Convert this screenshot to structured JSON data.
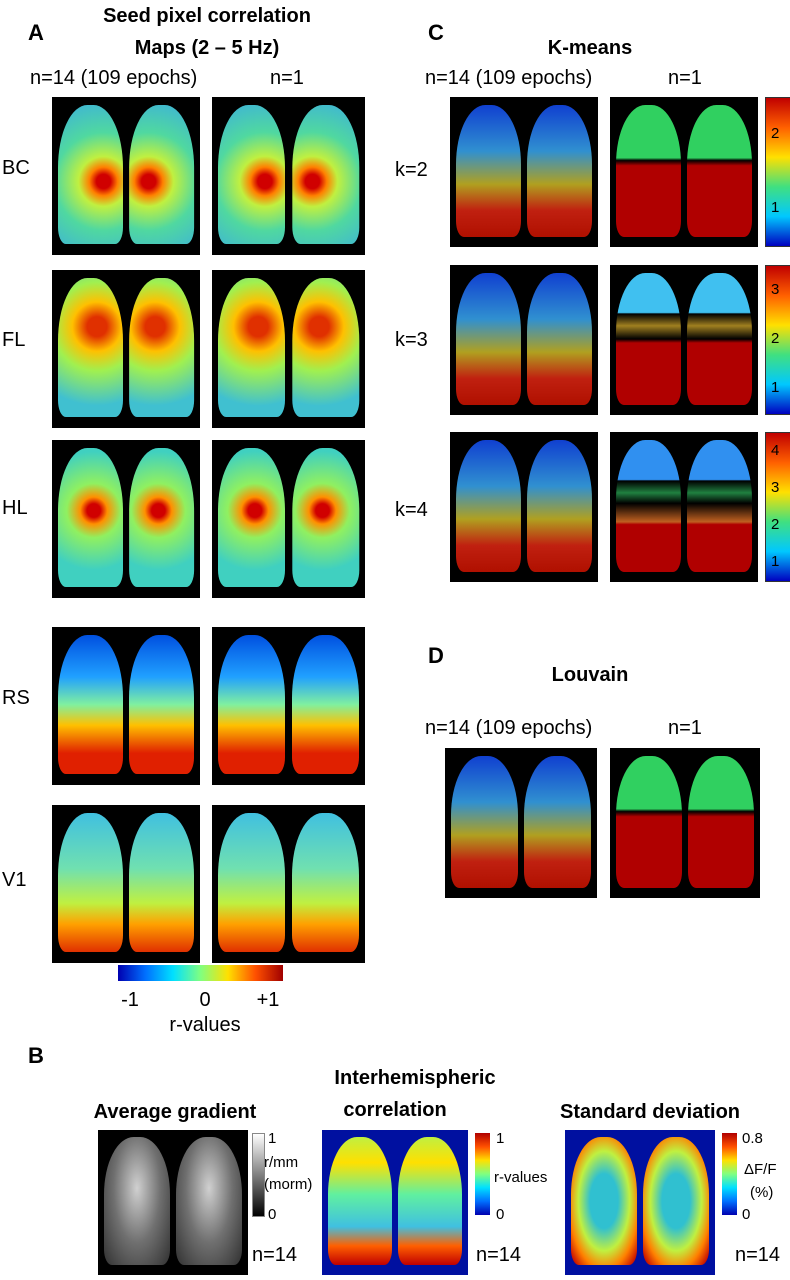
{
  "panel_a": {
    "label": "A",
    "title_lines": [
      "Seed pixel correlation",
      "Maps (2 – 5 Hz)"
    ],
    "column_headers": [
      "n=14 (109 epochs)",
      "n=1"
    ],
    "row_labels": [
      "BC",
      "FL",
      "HL",
      "RS",
      "V1"
    ],
    "colorbar": {
      "ticks": [
        "-1",
        "0",
        "+1"
      ],
      "label": "r-values"
    }
  },
  "panel_c": {
    "label": "C",
    "title": "K-means",
    "column_headers": [
      "n=14 (109 epochs)",
      "n=1"
    ],
    "row_labels": [
      "k=2",
      "k=3",
      "k=4"
    ],
    "colorbar_ticks": [
      [
        "2",
        "1"
      ],
      [
        "3",
        "2",
        "1"
      ],
      [
        "4",
        "3",
        "2",
        "1"
      ]
    ]
  },
  "panel_d": {
    "label": "D",
    "title": "Louvain",
    "column_headers": [
      "n=14 (109 epochs)",
      "n=1"
    ]
  },
  "panel_b": {
    "label": "B",
    "panels": [
      {
        "title_lines": [
          "Average gradient"
        ],
        "colorbar_labels": [
          "1",
          "r/mm",
          "(morm)",
          "0"
        ],
        "n": "n=14"
      },
      {
        "title_lines": [
          "Interhemispheric",
          "correlation"
        ],
        "colorbar_labels": [
          "1",
          "r-values",
          "0"
        ],
        "n": "n=14"
      },
      {
        "title_lines": [
          "Standard deviation"
        ],
        "colorbar_labels": [
          "0.8",
          "ΔF/F",
          "(%)",
          "0"
        ],
        "n": "n=14"
      }
    ]
  }
}
